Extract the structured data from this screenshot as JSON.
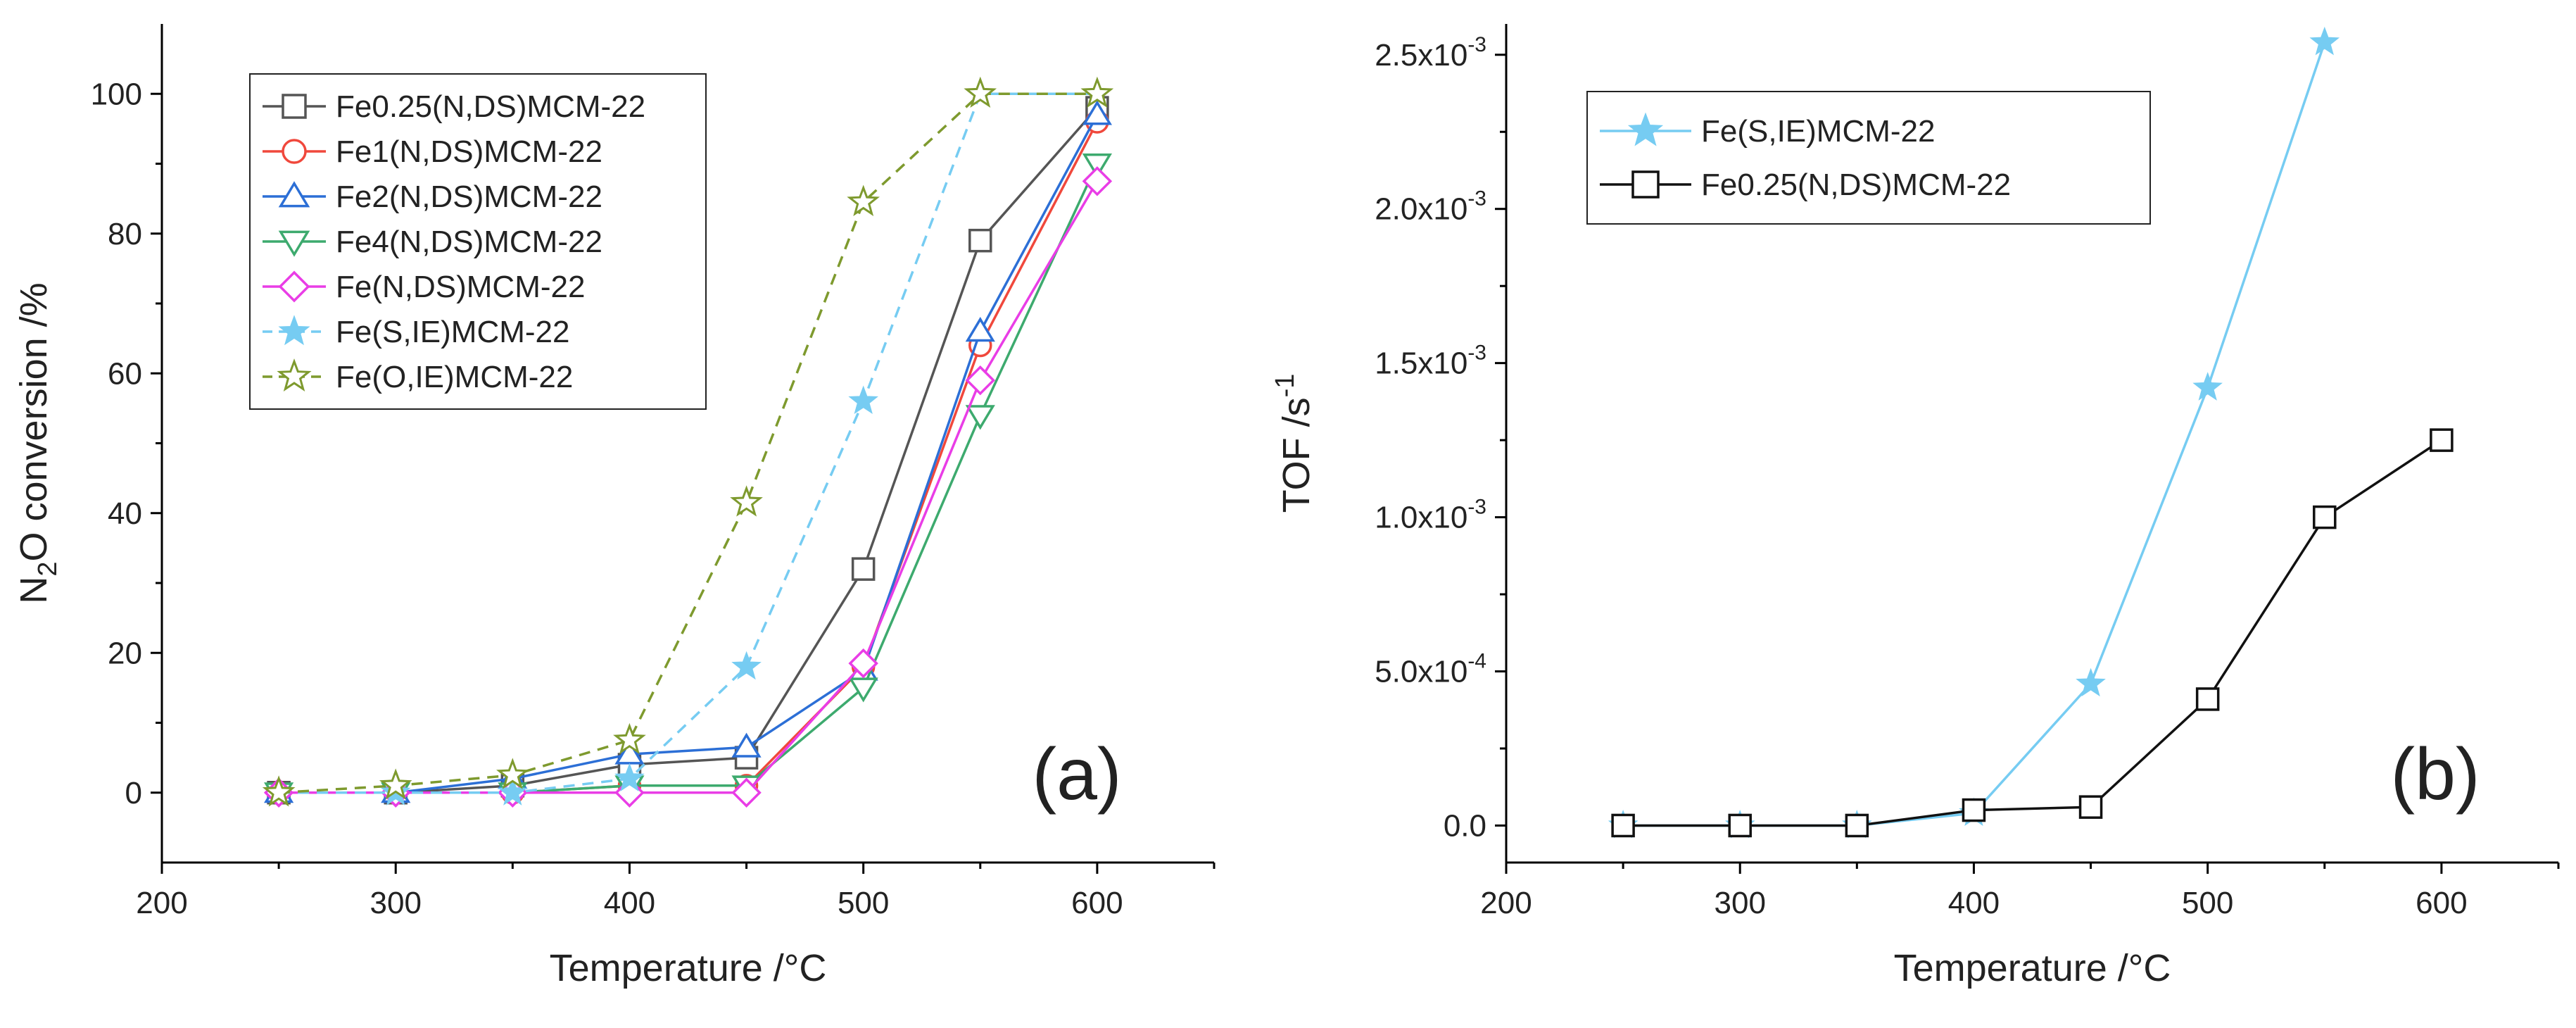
{
  "chart_data": [
    {
      "id": "a",
      "type": "line",
      "panel_label": "(a)",
      "xlabel": "Temperature /°C",
      "ylabel": {
        "pre": "N",
        "sub": "2",
        "post": "O conversion /%"
      },
      "xlim": [
        200,
        650
      ],
      "ylim": [
        -10,
        110
      ],
      "xticks": [
        200,
        300,
        400,
        500,
        600
      ],
      "yticks": [
        0,
        20,
        40,
        60,
        80,
        100
      ],
      "xtick_labels": [
        "200",
        "300",
        "400",
        "500",
        "600"
      ],
      "ytick_labels": [
        "0",
        "20",
        "40",
        "60",
        "80",
        "100"
      ],
      "legend_position": "upper-left",
      "series": [
        {
          "name": "Fe0.25(N,DS)MCM-22",
          "color": "#555555",
          "marker": "square",
          "dash": false,
          "x": [
            250,
            300,
            350,
            400,
            450,
            500,
            550,
            600
          ],
          "y": [
            0,
            0,
            1,
            4,
            5,
            32,
            79,
            98
          ]
        },
        {
          "name": "Fe1(N,DS)MCM-22",
          "color": "#f0483c",
          "marker": "circle",
          "dash": false,
          "x": [
            250,
            300,
            350,
            400,
            450,
            500,
            550,
            600
          ],
          "y": [
            0,
            0,
            0,
            1,
            1,
            18,
            64,
            96
          ]
        },
        {
          "name": "Fe2(N,DS)MCM-22",
          "color": "#2c6fd6",
          "marker": "triangle-up",
          "dash": false,
          "x": [
            250,
            300,
            350,
            400,
            450,
            500,
            550,
            600
          ],
          "y": [
            0,
            0,
            2,
            5.5,
            6.5,
            17.5,
            66,
            97
          ]
        },
        {
          "name": "Fe4(N,DS)MCM-22",
          "color": "#3daa6e",
          "marker": "triangle-down",
          "dash": false,
          "x": [
            250,
            300,
            350,
            400,
            450,
            500,
            550,
            600
          ],
          "y": [
            0,
            0,
            0,
            1,
            1,
            15,
            54,
            90
          ]
        },
        {
          "name": "Fe(N,DS)MCM-22",
          "color": "#e93de6",
          "marker": "diamond",
          "dash": false,
          "x": [
            250,
            300,
            350,
            400,
            450,
            500,
            550,
            600
          ],
          "y": [
            0,
            0,
            0,
            0,
            0,
            18.5,
            59,
            87.5
          ]
        },
        {
          "name": "Fe(S,IE)MCM-22",
          "color": "#76ccf2",
          "marker": "star-filled",
          "dash": true,
          "x": [
            250,
            300,
            350,
            400,
            450,
            500,
            550,
            600
          ],
          "y": [
            0,
            0,
            0,
            2,
            18,
            56,
            100,
            100
          ]
        },
        {
          "name": "Fe(O,IE)MCM-22",
          "color": "#7e9a2e",
          "marker": "star-open",
          "dash": true,
          "x": [
            250,
            300,
            350,
            400,
            450,
            500,
            550,
            600
          ],
          "y": [
            0,
            1,
            2.5,
            7.5,
            41.5,
            84.5,
            100,
            100
          ]
        }
      ]
    },
    {
      "id": "b",
      "type": "line",
      "panel_label": "(b)",
      "xlabel": "Temperature /°C",
      "ylabel": {
        "pre": "TOF /s",
        "sup": "-1"
      },
      "xlim": [
        200,
        650
      ],
      "ylim": [
        -0.00012,
        0.0026
      ],
      "xticks": [
        200,
        300,
        400,
        500,
        600
      ],
      "xtick_labels": [
        "200",
        "300",
        "400",
        "500",
        "600"
      ],
      "yticks": [
        0,
        0.0005,
        0.001,
        0.0015,
        0.002,
        0.0025
      ],
      "ytick_labels": [
        {
          "base": "0.0",
          "exp": ""
        },
        {
          "base": "5.0x10",
          "exp": "-4"
        },
        {
          "base": "1.0x10",
          "exp": "-3"
        },
        {
          "base": "1.5x10",
          "exp": "-3"
        },
        {
          "base": "2.0x10",
          "exp": "-3"
        },
        {
          "base": "2.5x10",
          "exp": "-3"
        }
      ],
      "legend_position": "upper-left",
      "series": [
        {
          "name": "Fe(S,IE)MCM-22",
          "color": "#76ccf2",
          "marker": "star-filled",
          "dash": false,
          "x": [
            250,
            300,
            350,
            400,
            450,
            500,
            550
          ],
          "y": [
            0,
            0,
            0,
            4e-05,
            0.00046,
            0.00142,
            0.00254
          ]
        },
        {
          "name": "Fe0.25(N,DS)MCM-22",
          "color": "#111111",
          "marker": "square",
          "dash": false,
          "x": [
            250,
            300,
            350,
            400,
            450,
            500,
            550,
            600
          ],
          "y": [
            0,
            0,
            0,
            5e-05,
            6e-05,
            0.00041,
            0.001,
            0.00125
          ]
        }
      ]
    }
  ]
}
